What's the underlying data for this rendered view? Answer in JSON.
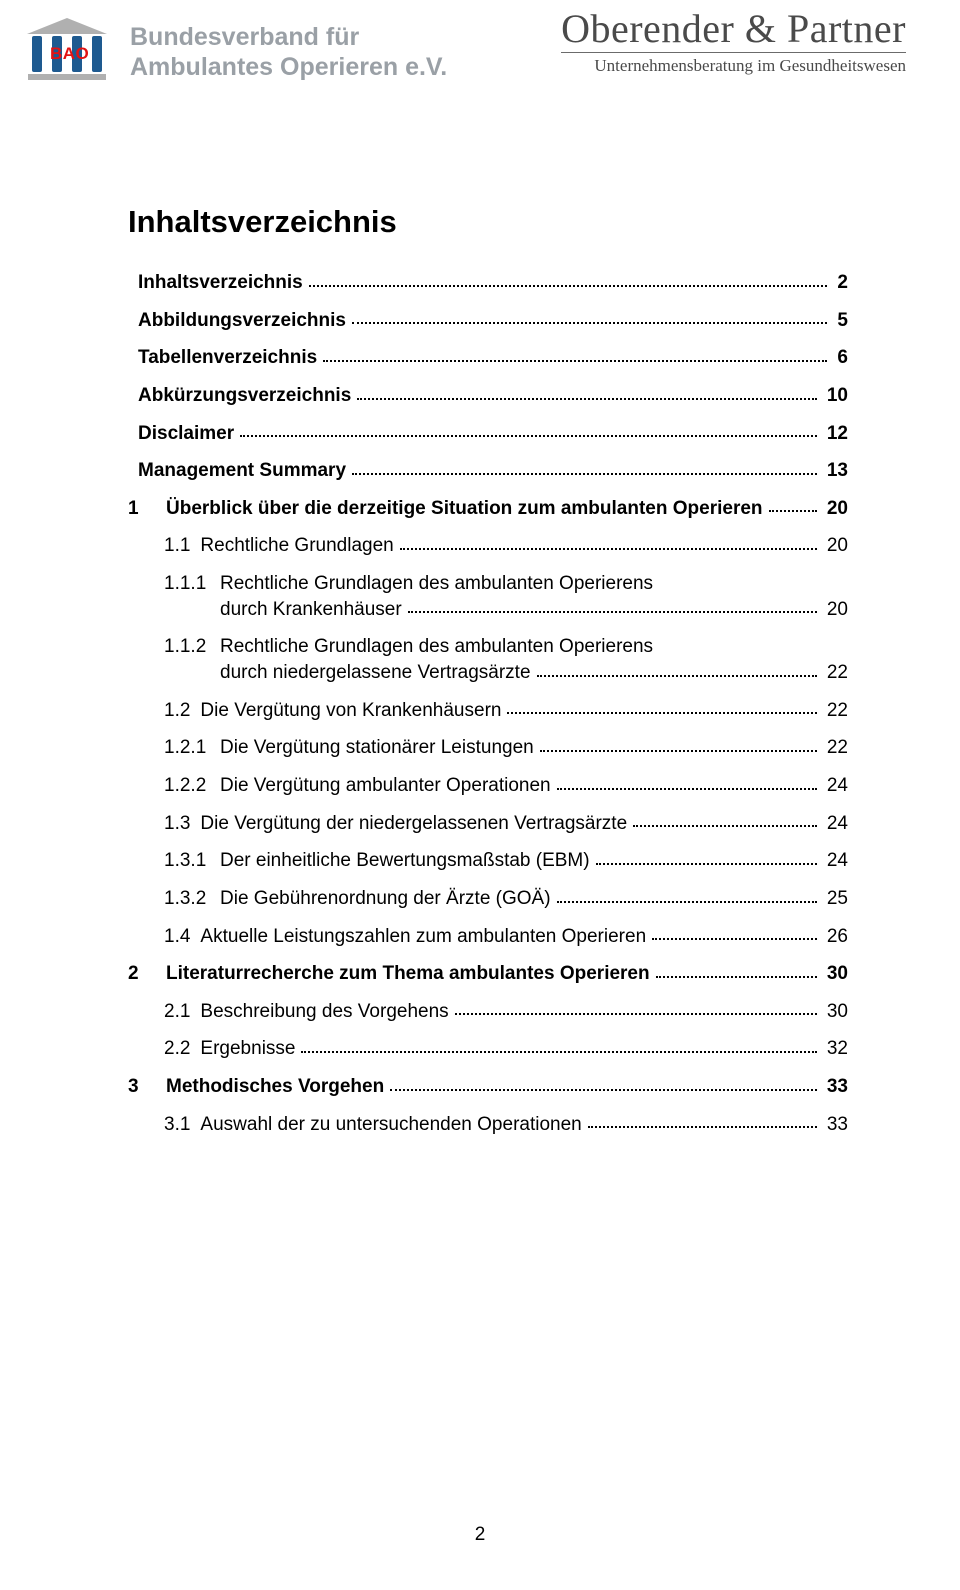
{
  "colors": {
    "text": "#000000",
    "bg": "#ffffff",
    "logo_gray": "#9aa0a6",
    "bao_red": "#e21212",
    "bao_blue": "#1e5a90",
    "ob_gray": "#4a4a4a"
  },
  "fonts": {
    "body": "Arial",
    "logo_right": "Times New Roman",
    "title_size_pt": 24,
    "body_size_pt": 14
  },
  "header": {
    "bao_label": "BAO",
    "org_line1": "Bundesverband für",
    "org_line2": "Ambulantes Operieren e.V.",
    "oberender_name": "Oberender & Partner",
    "oberender_sub": "Unternehmensberatung im Gesundheitswesen"
  },
  "title": "Inhaltsverzeichnis",
  "toc": [
    {
      "num": "",
      "label": "Inhaltsverzeichnis",
      "page": "2",
      "bold": true,
      "indent": 0
    },
    {
      "num": "",
      "label": "Abbildungsverzeichnis",
      "page": "5",
      "bold": true,
      "indent": 0
    },
    {
      "num": "",
      "label": "Tabellenverzeichnis",
      "page": "6",
      "bold": true,
      "indent": 0
    },
    {
      "num": "",
      "label": "Abkürzungsverzeichnis",
      "page": "10",
      "bold": true,
      "indent": 0
    },
    {
      "num": "",
      "label": "Disclaimer",
      "page": "12",
      "bold": true,
      "indent": 0
    },
    {
      "num": "",
      "label": "Management Summary",
      "page": "13",
      "bold": true,
      "indent": 0
    },
    {
      "num": "1",
      "label": "Überblick über die derzeitige Situation zum ambulanten Operieren",
      "page": "20",
      "bold": true,
      "indent": 0
    },
    {
      "num": "1.1",
      "label": "Rechtliche Grundlagen",
      "page": "20",
      "bold": false,
      "indent": 1
    },
    {
      "num": "1.1.1",
      "label": "Rechtliche Grundlagen des ambulanten Operierens durch Krankenhäuser",
      "page": "20",
      "bold": false,
      "indent": 2,
      "wrap": true
    },
    {
      "num": "1.1.2",
      "label": "Rechtliche Grundlagen des ambulanten Operierens durch niedergelassene Vertragsärzte",
      "page": "22",
      "bold": false,
      "indent": 2,
      "wrap": true
    },
    {
      "num": "1.2",
      "label": "Die Vergütung von Krankenhäusern",
      "page": "22",
      "bold": false,
      "indent": 1
    },
    {
      "num": "1.2.1",
      "label": "Die Vergütung stationärer Leistungen",
      "page": "22",
      "bold": false,
      "indent": 2
    },
    {
      "num": "1.2.2",
      "label": "Die Vergütung ambulanter Operationen",
      "page": "24",
      "bold": false,
      "indent": 2
    },
    {
      "num": "1.3",
      "label": "Die Vergütung der niedergelassenen Vertragsärzte",
      "page": "24",
      "bold": false,
      "indent": 1
    },
    {
      "num": "1.3.1",
      "label": "Der einheitliche Bewertungsmaßstab (EBM)",
      "page": "24",
      "bold": false,
      "indent": 2
    },
    {
      "num": "1.3.2",
      "label": "Die Gebührenordnung der Ärzte (GOÄ)",
      "page": "25",
      "bold": false,
      "indent": 2
    },
    {
      "num": "1.4",
      "label": "Aktuelle Leistungszahlen zum ambulanten Operieren",
      "page": "26",
      "bold": false,
      "indent": 1
    },
    {
      "num": "2",
      "label": "Literaturrecherche zum Thema ambulantes Operieren",
      "page": "30",
      "bold": true,
      "indent": 0
    },
    {
      "num": "2.1",
      "label": "Beschreibung des Vorgehens",
      "page": "30",
      "bold": false,
      "indent": 1
    },
    {
      "num": "2.2",
      "label": "Ergebnisse",
      "page": "32",
      "bold": false,
      "indent": 1
    },
    {
      "num": "3",
      "label": "Methodisches Vorgehen",
      "page": "33",
      "bold": true,
      "indent": 0
    },
    {
      "num": "3.1",
      "label": "Auswahl der zu untersuchenden Operationen",
      "page": "33",
      "bold": false,
      "indent": 1
    }
  ],
  "page_number": "2"
}
